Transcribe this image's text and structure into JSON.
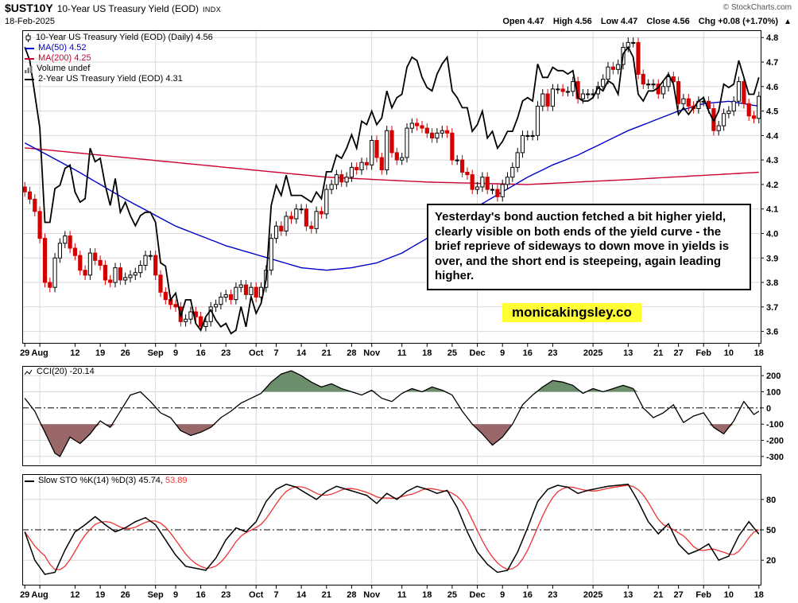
{
  "theme": {
    "background": "#ffffff",
    "grid_color": "#d9d9d9",
    "border_color": "#000000",
    "candle_up_color": "#000000",
    "candle_down_color": "#d40000",
    "ma50_color": "#0000cc",
    "ma200_color": "#cc0033",
    "overlay_line_color": "#000000",
    "cci_line_color": "#000000",
    "cci_fill_above": "#6d8e6d",
    "cci_fill_below": "#9a6868",
    "sto_k_color": "#000000",
    "sto_d_color": "#ee3333",
    "annotation_highlight": "#ffff33",
    "copyright_color": "#555555"
  },
  "header": {
    "symbol": "$UST10Y",
    "title": "10-Year US Treasury Yield (EOD)",
    "exchange": "INDX",
    "copyright": "© StockCharts.com",
    "date": "18-Feb-2025",
    "quote": {
      "open_label": "Open",
      "open": "4.47",
      "high_label": "High",
      "high": "4.56",
      "low_label": "Low",
      "low": "4.47",
      "close_label": "Close",
      "close": "4.56",
      "chg_label": "Chg",
      "chg": "+0.08 (+1.70%)",
      "arrow": "▲"
    }
  },
  "legends": {
    "main": [
      {
        "label": "10-Year US Treasury Yield (EOD) (Daily) 4.56",
        "color": "#000000"
      },
      {
        "label": "MA(50) 4.52",
        "color": "#0000cc"
      },
      {
        "label": "MA(200) 4.25",
        "color": "#cc0033"
      },
      {
        "label": "Volume undef",
        "color": "#000000"
      },
      {
        "label": "2-Year US Treasury Yield (EOD) 4.31",
        "color": "#000000"
      }
    ],
    "cci": {
      "label": "CCI(20) -20.14"
    },
    "sto": {
      "label": "Slow STO %K(14) %D(3)",
      "k_value": "45.74,",
      "d_value": "53.89"
    }
  },
  "annotation": {
    "text": "Yesterday's bond auction fetched a bit higher yield, clearly visible on both ends of the yield curve - the brief reprieve  of sideways to down move in yields is over, and the short end is steepeing, again leading higher.",
    "watermark": "monicakingsley.co"
  },
  "chart_data": [
    {
      "type": "candlestick",
      "title": "10-Year US Treasury Yield (EOD) (Daily)",
      "last": 4.56,
      "ylim": [
        3.55,
        4.83
      ],
      "yticks": [
        3.6,
        3.7,
        3.8,
        3.9,
        4.0,
        4.1,
        4.2,
        4.3,
        4.4,
        4.5,
        4.6,
        4.7,
        4.8
      ],
      "x_labels": [
        {
          "label": "29",
          "index": 0
        },
        {
          "label": "Aug",
          "index": 3,
          "month": true
        },
        {
          "label": "12",
          "index": 10
        },
        {
          "label": "19",
          "index": 15
        },
        {
          "label": "26",
          "index": 20
        },
        {
          "label": "Sep",
          "index": 26,
          "month": true
        },
        {
          "label": "9",
          "index": 30
        },
        {
          "label": "16",
          "index": 35
        },
        {
          "label": "23",
          "index": 40
        },
        {
          "label": "Oct",
          "index": 46,
          "month": true
        },
        {
          "label": "7",
          "index": 50
        },
        {
          "label": "14",
          "index": 55
        },
        {
          "label": "21",
          "index": 60
        },
        {
          "label": "28",
          "index": 65
        },
        {
          "label": "Nov",
          "index": 69,
          "month": true
        },
        {
          "label": "11",
          "index": 75
        },
        {
          "label": "18",
          "index": 80
        },
        {
          "label": "25",
          "index": 85
        },
        {
          "label": "Dec",
          "index": 90,
          "month": true
        },
        {
          "label": "9",
          "index": 95
        },
        {
          "label": "16",
          "index": 100
        },
        {
          "label": "23",
          "index": 105
        },
        {
          "label": "2025",
          "index": 113,
          "month": true
        },
        {
          "label": "13",
          "index": 120
        },
        {
          "label": "21",
          "index": 126
        },
        {
          "label": "27",
          "index": 130
        },
        {
          "label": "Feb",
          "index": 135,
          "month": true
        },
        {
          "label": "10",
          "index": 140
        },
        {
          "label": "18",
          "index": 146
        }
      ],
      "close": [
        4.17,
        4.14,
        4.09,
        3.98,
        3.8,
        3.78,
        3.9,
        3.96,
        3.99,
        3.94,
        3.91,
        3.85,
        3.83,
        3.92,
        3.89,
        3.87,
        3.81,
        3.8,
        3.86,
        3.81,
        3.82,
        3.83,
        3.84,
        3.87,
        3.91,
        3.91,
        3.83,
        3.76,
        3.73,
        3.71,
        3.7,
        3.64,
        3.65,
        3.68,
        3.66,
        3.62,
        3.64,
        3.7,
        3.71,
        3.74,
        3.75,
        3.73,
        3.78,
        3.79,
        3.75,
        3.78,
        3.74,
        3.78,
        3.85,
        3.98,
        4.03,
        4.01,
        4.07,
        4.06,
        4.1,
        4.1,
        4.03,
        4.02,
        4.09,
        4.08,
        4.18,
        4.2,
        4.24,
        4.21,
        4.23,
        4.27,
        4.26,
        4.29,
        4.28,
        4.38,
        4.31,
        4.26,
        4.42,
        4.33,
        4.3,
        4.31,
        4.43,
        4.45,
        4.44,
        4.43,
        4.41,
        4.39,
        4.41,
        4.42,
        4.41,
        4.3,
        4.3,
        4.25,
        4.24,
        4.18,
        4.19,
        4.23,
        4.18,
        4.18,
        4.15,
        4.2,
        4.23,
        4.27,
        4.33,
        4.4,
        4.4,
        4.4,
        4.52,
        4.57,
        4.52,
        4.59,
        4.59,
        4.58,
        4.58,
        4.62,
        4.55,
        4.57,
        4.57,
        4.57,
        4.6,
        4.63,
        4.68,
        4.67,
        4.69,
        4.76,
        4.78,
        4.78,
        4.65,
        4.61,
        4.61,
        4.61,
        4.57,
        4.6,
        4.64,
        4.62,
        4.53,
        4.55,
        4.52,
        4.51,
        4.54,
        4.54,
        4.51,
        4.42,
        4.44,
        4.49,
        4.5,
        4.54,
        4.62,
        4.53,
        4.48,
        4.47,
        4.56
      ],
      "ohlc_note": "closes estimated from chart; open=prior close, wicks ±0.02",
      "series": [
        {
          "name": "MA(50)",
          "type": "line",
          "last": 4.52,
          "anchors": [
            [
              0,
              4.37
            ],
            [
              10,
              4.26
            ],
            [
              20,
              4.14
            ],
            [
              30,
              4.03
            ],
            [
              40,
              3.95
            ],
            [
              50,
              3.89
            ],
            [
              55,
              3.86
            ],
            [
              60,
              3.85
            ],
            [
              65,
              3.86
            ],
            [
              70,
              3.88
            ],
            [
              75,
              3.92
            ],
            [
              80,
              3.98
            ],
            [
              85,
              4.05
            ],
            [
              90,
              4.11
            ],
            [
              95,
              4.17
            ],
            [
              100,
              4.23
            ],
            [
              105,
              4.28
            ],
            [
              110,
              4.32
            ],
            [
              115,
              4.37
            ],
            [
              120,
              4.42
            ],
            [
              125,
              4.46
            ],
            [
              130,
              4.5
            ],
            [
              135,
              4.53
            ],
            [
              140,
              4.54
            ],
            [
              146,
              4.52
            ]
          ]
        },
        {
          "name": "MA(200)",
          "type": "line",
          "last": 4.25,
          "anchors": [
            [
              0,
              4.35
            ],
            [
              20,
              4.31
            ],
            [
              40,
              4.27
            ],
            [
              60,
              4.23
            ],
            [
              80,
              4.21
            ],
            [
              100,
              4.2
            ],
            [
              120,
              4.22
            ],
            [
              146,
              4.25
            ]
          ]
        },
        {
          "name": "2-Year US Treasury Yield (EOD)",
          "type": "line",
          "last": 4.31,
          "own_ylim": [
            3.52,
            4.45
          ],
          "values": [
            4.4,
            4.36,
            4.26,
            4.16,
            3.88,
            3.88,
            3.98,
            3.99,
            4.04,
            4.05,
            3.97,
            3.94,
            3.95,
            4.1,
            4.06,
            4.07,
            3.99,
            3.93,
            4.01,
            3.91,
            3.94,
            3.9,
            3.87,
            3.9,
            3.91,
            3.91,
            3.88,
            3.76,
            3.75,
            3.65,
            3.67,
            3.6,
            3.65,
            3.65,
            3.58,
            3.56,
            3.6,
            3.62,
            3.59,
            3.57,
            3.58,
            3.55,
            3.56,
            3.63,
            3.57,
            3.66,
            3.61,
            3.64,
            3.71,
            3.93,
            3.99,
            3.96,
            4.02,
            3.96,
            3.96,
            3.96,
            3.95,
            3.94,
            3.97,
            3.95,
            4.03,
            4.03,
            4.08,
            4.07,
            4.1,
            4.14,
            4.1,
            4.18,
            4.17,
            4.21,
            4.17,
            4.19,
            4.27,
            4.22,
            4.25,
            4.26,
            4.34,
            4.37,
            4.36,
            4.31,
            4.28,
            4.27,
            4.32,
            4.35,
            4.37,
            4.27,
            4.25,
            4.22,
            4.22,
            4.15,
            4.17,
            4.21,
            4.13,
            4.15,
            4.1,
            4.12,
            4.15,
            4.15,
            4.19,
            4.24,
            4.25,
            4.24,
            4.35,
            4.31,
            4.31,
            4.34,
            4.33,
            4.33,
            4.32,
            4.33,
            4.25,
            4.24,
            4.24,
            4.25,
            4.28,
            4.27,
            4.3,
            4.29,
            4.26,
            4.38,
            4.4,
            4.37,
            4.26,
            4.24,
            4.27,
            4.27,
            4.28,
            4.3,
            4.32,
            4.29,
            4.2,
            4.22,
            4.2,
            4.22,
            4.24,
            4.25,
            4.21,
            4.18,
            4.21,
            4.29,
            4.28,
            4.29,
            4.36,
            4.31,
            4.26,
            4.26,
            4.31
          ]
        }
      ]
    },
    {
      "type": "line",
      "title": "CCI(20)",
      "last": -20.14,
      "ylim": [
        -360,
        260
      ],
      "yticks": [
        200,
        100,
        0,
        -100,
        -200,
        -300
      ],
      "band": [
        100,
        -100
      ],
      "anchors": [
        [
          0,
          60
        ],
        [
          2,
          -20
        ],
        [
          4,
          -150
        ],
        [
          6,
          -280
        ],
        [
          7,
          -300
        ],
        [
          9,
          -180
        ],
        [
          11,
          -220
        ],
        [
          13,
          -160
        ],
        [
          15,
          -80
        ],
        [
          17,
          -120
        ],
        [
          19,
          -20
        ],
        [
          21,
          80
        ],
        [
          23,
          100
        ],
        [
          25,
          40
        ],
        [
          27,
          -30
        ],
        [
          29,
          -60
        ],
        [
          31,
          -140
        ],
        [
          33,
          -170
        ],
        [
          35,
          -150
        ],
        [
          37,
          -120
        ],
        [
          39,
          -60
        ],
        [
          41,
          -20
        ],
        [
          43,
          30
        ],
        [
          45,
          60
        ],
        [
          47,
          90
        ],
        [
          49,
          160
        ],
        [
          51,
          210
        ],
        [
          53,
          230
        ],
        [
          55,
          200
        ],
        [
          57,
          160
        ],
        [
          59,
          130
        ],
        [
          61,
          150
        ],
        [
          63,
          120
        ],
        [
          65,
          100
        ],
        [
          67,
          80
        ],
        [
          69,
          110
        ],
        [
          71,
          60
        ],
        [
          73,
          40
        ],
        [
          75,
          90
        ],
        [
          77,
          120
        ],
        [
          79,
          100
        ],
        [
          81,
          130
        ],
        [
          83,
          110
        ],
        [
          85,
          80
        ],
        [
          87,
          -20
        ],
        [
          89,
          -100
        ],
        [
          91,
          -160
        ],
        [
          93,
          -230
        ],
        [
          95,
          -180
        ],
        [
          97,
          -100
        ],
        [
          99,
          20
        ],
        [
          101,
          80
        ],
        [
          103,
          130
        ],
        [
          105,
          170
        ],
        [
          107,
          160
        ],
        [
          109,
          140
        ],
        [
          111,
          90
        ],
        [
          113,
          120
        ],
        [
          115,
          100
        ],
        [
          117,
          120
        ],
        [
          119,
          140
        ],
        [
          121,
          120
        ],
        [
          123,
          0
        ],
        [
          125,
          -60
        ],
        [
          127,
          -30
        ],
        [
          129,
          20
        ],
        [
          131,
          -90
        ],
        [
          133,
          -50
        ],
        [
          135,
          -30
        ],
        [
          137,
          -120
        ],
        [
          139,
          -160
        ],
        [
          141,
          -80
        ],
        [
          143,
          40
        ],
        [
          145,
          -40
        ],
        [
          146,
          -20.14
        ]
      ]
    },
    {
      "type": "line",
      "title": "Slow STO %K(14) %D(3)",
      "k_last": 45.74,
      "d_last": 53.89,
      "ylim": [
        -5,
        105
      ],
      "yticks": [
        80,
        50,
        20
      ],
      "k_anchors": [
        [
          0,
          48
        ],
        [
          2,
          20
        ],
        [
          4,
          6
        ],
        [
          6,
          8
        ],
        [
          8,
          30
        ],
        [
          10,
          48
        ],
        [
          12,
          55
        ],
        [
          14,
          63
        ],
        [
          16,
          55
        ],
        [
          18,
          48
        ],
        [
          20,
          52
        ],
        [
          22,
          58
        ],
        [
          24,
          62
        ],
        [
          26,
          55
        ],
        [
          28,
          40
        ],
        [
          30,
          25
        ],
        [
          32,
          14
        ],
        [
          34,
          12
        ],
        [
          36,
          10
        ],
        [
          38,
          22
        ],
        [
          40,
          40
        ],
        [
          42,
          52
        ],
        [
          44,
          48
        ],
        [
          46,
          58
        ],
        [
          48,
          78
        ],
        [
          50,
          90
        ],
        [
          52,
          95
        ],
        [
          54,
          92
        ],
        [
          56,
          86
        ],
        [
          58,
          80
        ],
        [
          60,
          88
        ],
        [
          62,
          93
        ],
        [
          64,
          90
        ],
        [
          66,
          87
        ],
        [
          68,
          84
        ],
        [
          70,
          76
        ],
        [
          72,
          86
        ],
        [
          74,
          80
        ],
        [
          76,
          88
        ],
        [
          78,
          93
        ],
        [
          80,
          90
        ],
        [
          82,
          86
        ],
        [
          84,
          89
        ],
        [
          86,
          72
        ],
        [
          88,
          48
        ],
        [
          90,
          28
        ],
        [
          92,
          16
        ],
        [
          94,
          8
        ],
        [
          96,
          10
        ],
        [
          98,
          28
        ],
        [
          100,
          52
        ],
        [
          102,
          78
        ],
        [
          104,
          90
        ],
        [
          106,
          94
        ],
        [
          108,
          92
        ],
        [
          110,
          86
        ],
        [
          112,
          89
        ],
        [
          114,
          91
        ],
        [
          116,
          93
        ],
        [
          118,
          94
        ],
        [
          120,
          95
        ],
        [
          122,
          78
        ],
        [
          124,
          58
        ],
        [
          126,
          46
        ],
        [
          128,
          56
        ],
        [
          130,
          36
        ],
        [
          132,
          26
        ],
        [
          134,
          30
        ],
        [
          136,
          36
        ],
        [
          138,
          20
        ],
        [
          140,
          24
        ],
        [
          142,
          44
        ],
        [
          144,
          58
        ],
        [
          146,
          45.74
        ]
      ],
      "d_note": "%D rendered as trailing average of %K"
    }
  ]
}
